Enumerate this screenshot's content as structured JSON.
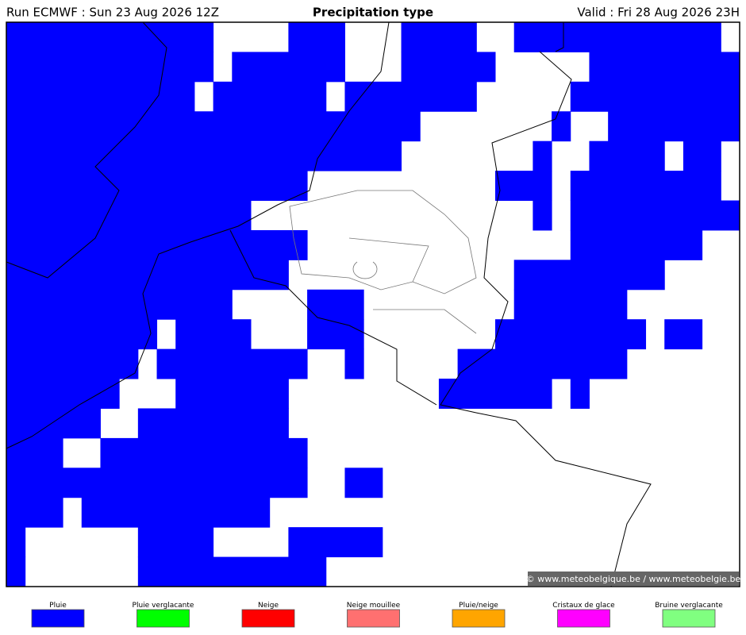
{
  "header": {
    "run": "Run ECMWF : Sun 23 Aug 2026 12Z",
    "title": "Precipitation type",
    "valid": "Valid : Fri 28 Aug 2026 23H"
  },
  "copyright": "© www.meteobelgique.be / www.meteobelgie.be",
  "legend": [
    {
      "label": "Pluie",
      "color": "#0000ff"
    },
    {
      "label": "Pluie verglacante",
      "color": "#00ff00"
    },
    {
      "label": "Neige",
      "color": "#ff0000"
    },
    {
      "label": "Neige mouillee",
      "color": "#ff7070"
    },
    {
      "label": "Pluie/neige",
      "color": "#ffa500"
    },
    {
      "label": "Cristaux de glace",
      "color": "#ff00ff"
    },
    {
      "label": "Bruine verglacante",
      "color": "#80ff80"
    }
  ]
}
